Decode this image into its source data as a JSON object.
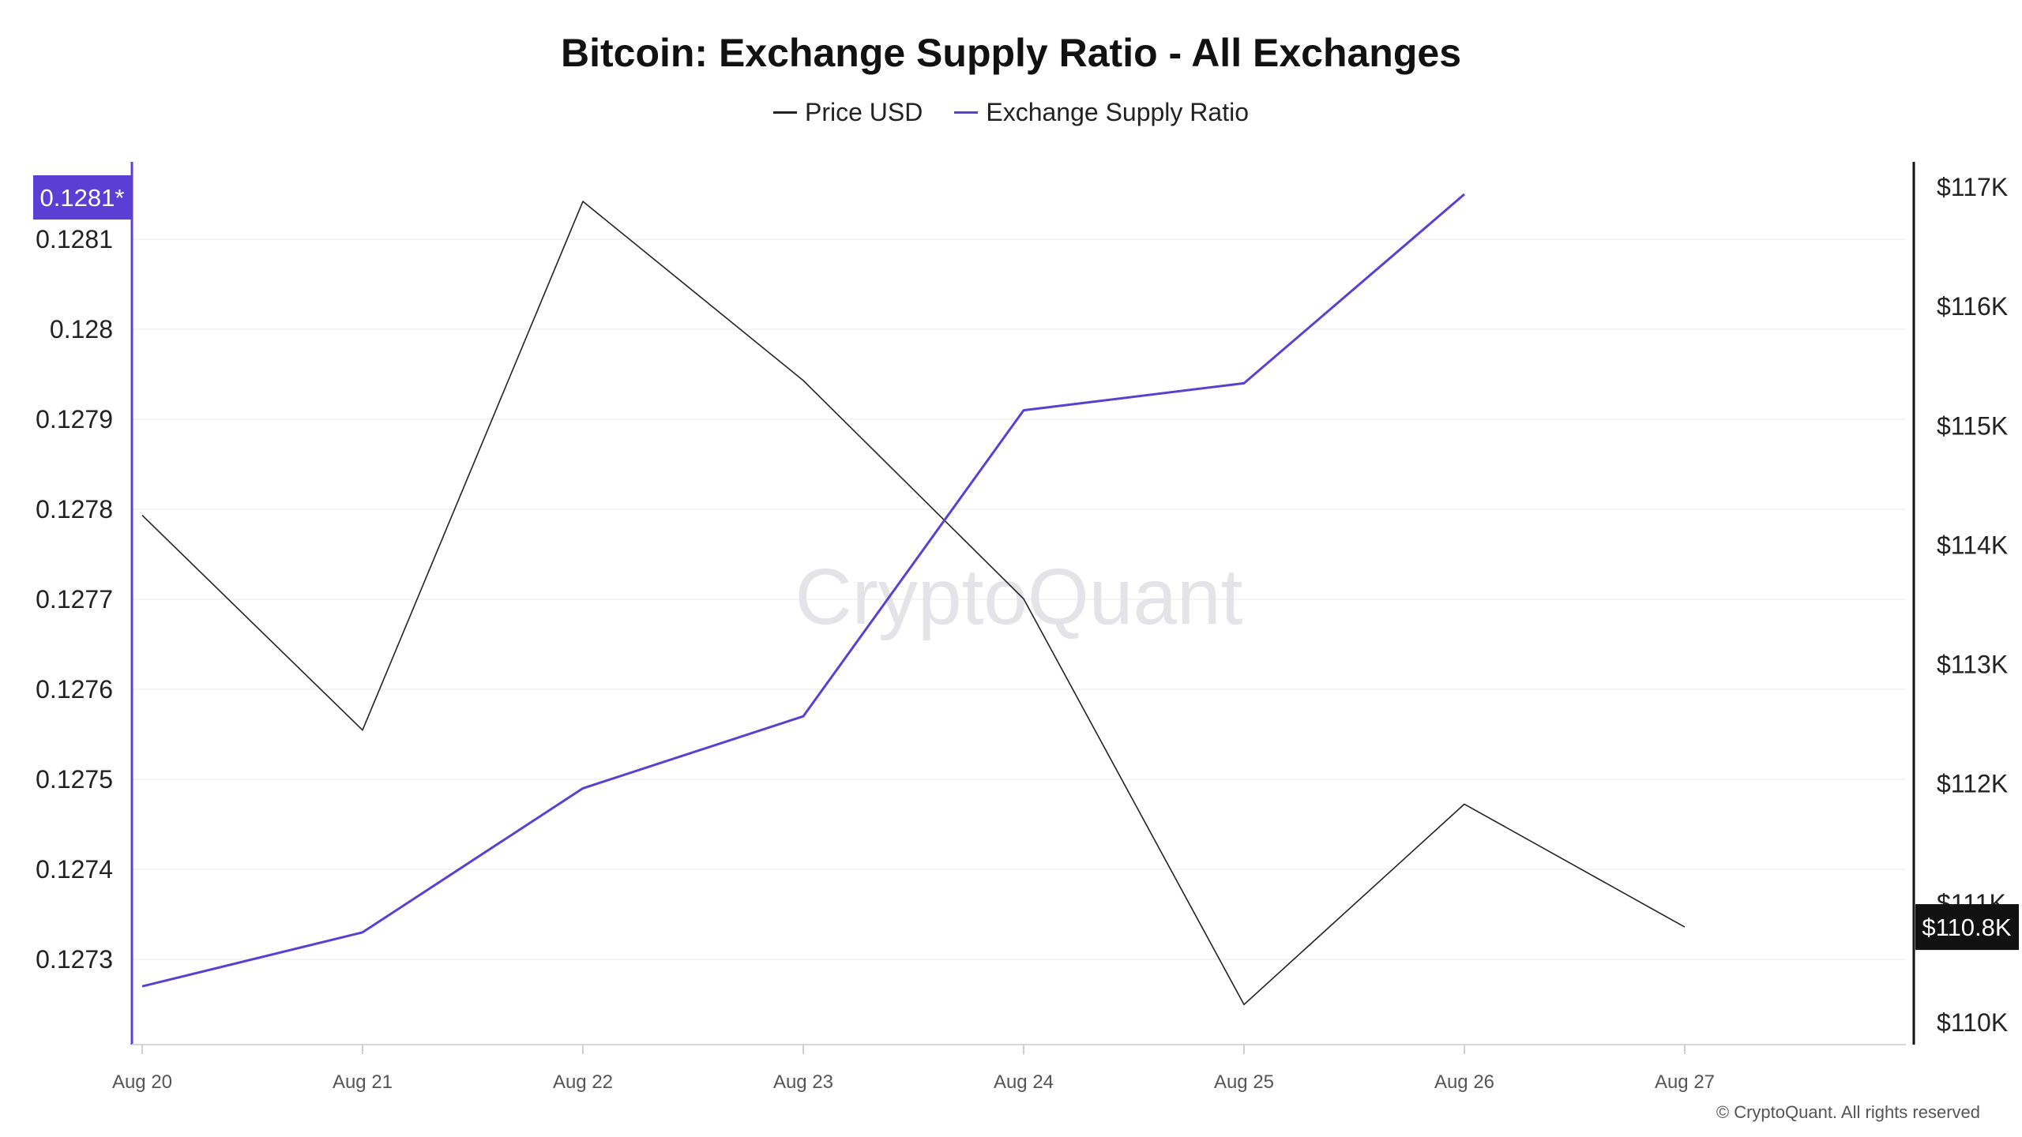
{
  "chart_data": {
    "type": "line",
    "title": "Bitcoin: Exchange Supply Ratio - All Exchanges",
    "x": [
      "Aug 20",
      "Aug 21",
      "Aug 22",
      "Aug 23",
      "Aug 24",
      "Aug 25",
      "Aug 26",
      "Aug 27"
    ],
    "series": [
      {
        "name": "Price USD",
        "color": "#222222",
        "axis": "right",
        "values": [
          114250,
          112450,
          116880,
          115380,
          113550,
          110150,
          111830,
          110800
        ]
      },
      {
        "name": "Exchange Supply Ratio",
        "color": "#5b3fd4",
        "axis": "left",
        "values": [
          0.12727,
          0.12733,
          0.12749,
          0.12757,
          0.12791,
          0.12794,
          0.12815,
          null
        ]
      }
    ],
    "left_axis": {
      "ticks": [
        "0.1273",
        "0.1274",
        "0.1275",
        "0.1276",
        "0.1277",
        "0.1278",
        "0.1279",
        "0.128",
        "0.1281"
      ],
      "tick_values": [
        0.1273,
        0.1274,
        0.1275,
        0.1276,
        0.1277,
        0.1278,
        0.1279,
        0.128,
        0.1281
      ],
      "current_label": "0.1281*",
      "current_value": 0.12815,
      "color": "#5b3fd4"
    },
    "right_axis": {
      "ticks": [
        "$110K",
        "$111K",
        "$112K",
        "$113K",
        "$114K",
        "$115K",
        "$116K",
        "$117K"
      ],
      "tick_values": [
        110000,
        111000,
        112000,
        113000,
        114000,
        115000,
        116000,
        117000
      ],
      "current_label": "$110.8K",
      "current_value": 110800,
      "color": "#111111"
    },
    "grid": true,
    "legend_position": "top-center"
  },
  "watermark": "CryptoQuant",
  "copyright": "© CryptoQuant. All rights reserved"
}
